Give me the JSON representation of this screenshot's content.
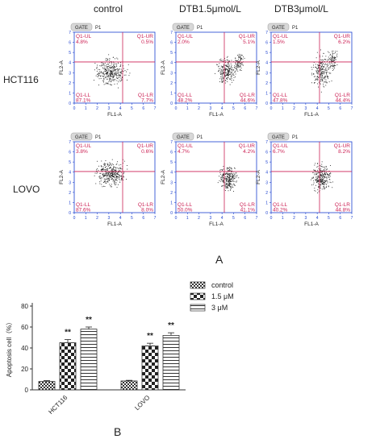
{
  "figure": {
    "columns": [
      "control",
      "DTB1.5μmol/L",
      "DTB3μmol/L"
    ],
    "rows": [
      "HCT116",
      "LOVO"
    ],
    "panel_label_A": "A",
    "panel_label_B": "B"
  },
  "flow": {
    "gate": "GATE",
    "gate_name": "P1",
    "xaxis": "FL1-A",
    "yaxis": "FL2-A",
    "ticks": [
      "0",
      "1",
      "2",
      "3",
      "4",
      "5",
      "6",
      "7"
    ],
    "quadrant_names": [
      "Q1-UL",
      "Q1-UR",
      "Q1-LL",
      "Q1-LR"
    ],
    "colors": {
      "quadrant": "#cc2255",
      "frame": "#1a3fcf",
      "dots": "#222222"
    },
    "panels": [
      {
        "row": 0,
        "col": 0,
        "values": {
          "UL": "4.8%",
          "UR": "0.5%",
          "LL": "87.1%",
          "LR": "7.7%"
        }
      },
      {
        "row": 0,
        "col": 1,
        "values": {
          "UL": "2.0%",
          "UR": "5.1%",
          "LL": "48.2%",
          "LR": "44.6%"
        }
      },
      {
        "row": 0,
        "col": 2,
        "values": {
          "UL": "1.5%",
          "UR": "6.2%",
          "LL": "47.8%",
          "LR": "44.4%"
        }
      },
      {
        "row": 1,
        "col": 0,
        "values": {
          "UL": "3.8%",
          "UR": "0.6%",
          "LL": "87.6%",
          "LR": "8.0%"
        }
      },
      {
        "row": 1,
        "col": 1,
        "values": {
          "UL": "4.7%",
          "UR": "4.2%",
          "LL": "50.0%",
          "LR": "41.1%"
        }
      },
      {
        "row": 1,
        "col": 2,
        "values": {
          "UL": "6.7%",
          "UR": "8.2%",
          "LL": "40.2%",
          "LR": "44.8%"
        }
      }
    ]
  },
  "chart_data": {
    "type": "bar",
    "ylabel": "Apoptosis cell（%）",
    "ylim": [
      0,
      80
    ],
    "yticks": [
      0,
      20,
      40,
      60,
      80
    ],
    "categories": [
      "HCT116",
      "LOVO"
    ],
    "series": [
      {
        "name": "control",
        "pattern": "checker-dense",
        "values": [
          8,
          8.5
        ],
        "errors": [
          0.8,
          0.6
        ],
        "sig": [
          "",
          ""
        ]
      },
      {
        "name": "1.5 μM",
        "pattern": "checker-large",
        "values": [
          45,
          42
        ],
        "errors": [
          3,
          2.5
        ],
        "sig": [
          "**",
          "**"
        ]
      },
      {
        "name": "3 μM",
        "pattern": "hlines",
        "values": [
          58,
          52
        ],
        "errors": [
          2,
          2.5
        ],
        "sig": [
          "**",
          "**"
        ]
      }
    ],
    "legend_placement": "top-right"
  }
}
